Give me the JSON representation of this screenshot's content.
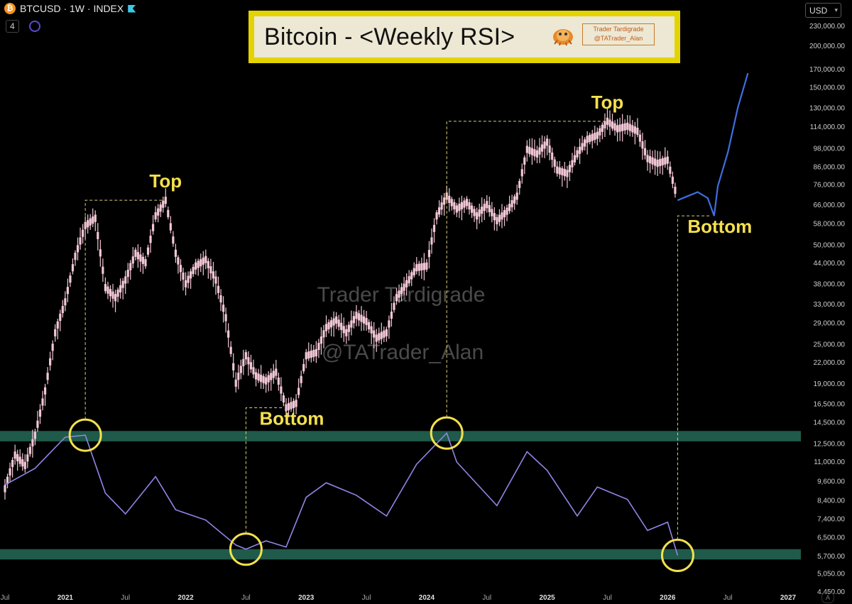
{
  "header": {
    "symbol_icon": "bitcoin-icon",
    "symbol_icon_glyph": "₿",
    "ticker_text": "BTCUSD · 1W · INDEX",
    "indicator_count": "4",
    "currency_label": "USD",
    "currency_caret": "▾",
    "auto_scale_label": "A"
  },
  "title_banner": {
    "title": "Bitcoin - <Weekly RSI>",
    "brand_line1": "Trader Tardigrade",
    "brand_line2": "@TATrader_Alan"
  },
  "watermark": {
    "line1": "Trader Tardigrade",
    "line2": "@TATrader_Alan"
  },
  "colors": {
    "background": "#000000",
    "candles": "#f2c7d6",
    "projection": "#3f6fe0",
    "rsi_line": "#8f86e6",
    "rsi_zone": "#1f5a4a",
    "annotation": "#f4e04d",
    "guide": "#d8d07a"
  },
  "chart_data": {
    "type": "line",
    "scale": "log",
    "symbol": "BTCUSD",
    "timeframe": "1W",
    "price_axis": {
      "ticks": [
        230000,
        200000,
        170000,
        150000,
        130000,
        114000,
        98000,
        86000,
        76000,
        66000,
        58000,
        50000,
        44000,
        38000,
        33000,
        29000,
        25000,
        22000,
        19000,
        16500,
        14500,
        12500,
        11000,
        9600,
        8400,
        7400,
        6500,
        5700,
        5050,
        4450
      ],
      "tick_labels": [
        "230,000.00",
        "200,000.00",
        "170,000.00",
        "150,000.00",
        "130,000.00",
        "114,000.00",
        "98,000.00",
        "86,000.00",
        "76,000.00",
        "66,000.00",
        "58,000.00",
        "50,000.00",
        "44,000.00",
        "38,000.00",
        "33,000.00",
        "29,000.00",
        "25,000.00",
        "22,000.00",
        "19,000.00",
        "16,500.00",
        "14,500.00",
        "12,500.00",
        "11,000.00",
        "9,600.00",
        "8,400.00",
        "7,400.00",
        "6,500.00",
        "5,700.00",
        "5,050.00",
        "4,450.00"
      ]
    },
    "time_axis": {
      "ticks": [
        "2020-07",
        "2021-01",
        "2021-07",
        "2022-01",
        "2022-07",
        "2023-01",
        "2023-07",
        "2024-01",
        "2024-07",
        "2025-01",
        "2025-07",
        "2026-01",
        "2026-07",
        "2027-01"
      ],
      "tick_labels": [
        "Jul",
        "2021",
        "Jul",
        "2022",
        "Jul",
        "2023",
        "Jul",
        "2024",
        "Jul",
        "2025",
        "Jul",
        "2026",
        "Jul",
        "2027"
      ]
    },
    "series": [
      {
        "name": "",
        "points": [
          [
            "2020-07",
            9100
          ],
          [
            "2020-08",
            11500
          ],
          [
            "2020-09",
            10700
          ],
          [
            "2020-10",
            13200
          ],
          [
            "2020-11",
            18000
          ],
          [
            "2020-12",
            27000
          ],
          [
            "2021-01",
            33500
          ],
          [
            "2021-02",
            46000
          ],
          [
            "2021-03",
            57000
          ],
          [
            "2021-04",
            60000
          ],
          [
            "2021-05",
            37000
          ],
          [
            "2021-06",
            34500
          ],
          [
            "2021-07",
            39000
          ],
          [
            "2021-08",
            47000
          ],
          [
            "2021-09",
            44000
          ],
          [
            "2021-10",
            61000
          ],
          [
            "2021-11",
            68000
          ],
          [
            "2021-12",
            47000
          ],
          [
            "2022-01",
            38000
          ],
          [
            "2022-02",
            43000
          ],
          [
            "2022-03",
            45000
          ],
          [
            "2022-04",
            39000
          ],
          [
            "2022-05",
            30000
          ],
          [
            "2022-06",
            19000
          ],
          [
            "2022-07",
            23000
          ],
          [
            "2022-08",
            20000
          ],
          [
            "2022-09",
            19300
          ],
          [
            "2022-10",
            20500
          ],
          [
            "2022-11",
            16000
          ],
          [
            "2022-12",
            16500
          ],
          [
            "2023-01",
            23000
          ],
          [
            "2023-02",
            23500
          ],
          [
            "2023-03",
            28000
          ],
          [
            "2023-04",
            29500
          ],
          [
            "2023-05",
            27000
          ],
          [
            "2023-06",
            30500
          ],
          [
            "2023-07",
            29200
          ],
          [
            "2023-08",
            26000
          ],
          [
            "2023-09",
            27000
          ],
          [
            "2023-10",
            34500
          ],
          [
            "2023-11",
            38000
          ],
          [
            "2023-12",
            42500
          ],
          [
            "2024-01",
            43000
          ],
          [
            "2024-02",
            61000
          ],
          [
            "2024-03",
            70000
          ],
          [
            "2024-04",
            64000
          ],
          [
            "2024-05",
            67000
          ],
          [
            "2024-06",
            61000
          ],
          [
            "2024-07",
            66000
          ],
          [
            "2024-08",
            59000
          ],
          [
            "2024-09",
            63000
          ],
          [
            "2024-10",
            70000
          ],
          [
            "2024-11",
            97000
          ],
          [
            "2024-12",
            94000
          ],
          [
            "2025-01",
            102000
          ],
          [
            "2025-02",
            84000
          ],
          [
            "2025-03",
            82000
          ],
          [
            "2025-04",
            94000
          ],
          [
            "2025-05",
            104000
          ],
          [
            "2025-06",
            107000
          ],
          [
            "2025-07",
            118000
          ],
          [
            "2025-08",
            112000
          ],
          [
            "2025-09",
            114000
          ],
          [
            "2025-10",
            110000
          ],
          [
            "2025-11",
            91000
          ],
          [
            "2025-12",
            88000
          ],
          [
            "2026-01",
            90000
          ],
          [
            "2026-02",
            68000
          ]
        ]
      },
      {
        "name": "",
        "points": [
          [
            "2026-02",
            68000
          ],
          [
            "2026-03",
            70000
          ],
          [
            "2026-04",
            72000
          ],
          [
            "2026-05",
            69000
          ],
          [
            "2026-05-20",
            61000
          ],
          [
            "2026-06",
            75000
          ],
          [
            "2026-07",
            95000
          ],
          [
            "2026-08",
            130000
          ],
          [
            "2026-09",
            165000
          ]
        ]
      }
    ],
    "rsi_panel": {
      "points": [
        [
          "2020-07",
          62
        ],
        [
          "2020-10",
          70
        ],
        [
          "2021-01",
          85
        ],
        [
          "2021-03",
          86
        ],
        [
          "2021-05",
          58
        ],
        [
          "2021-07",
          48
        ],
        [
          "2021-10",
          66
        ],
        [
          "2021-12",
          50
        ],
        [
          "2022-03",
          45
        ],
        [
          "2022-06",
          33
        ],
        [
          "2022-07",
          31
        ],
        [
          "2022-09",
          35
        ],
        [
          "2022-11",
          32
        ],
        [
          "2023-01",
          56
        ],
        [
          "2023-03",
          63
        ],
        [
          "2023-06",
          57
        ],
        [
          "2023-09",
          47
        ],
        [
          "2023-12",
          72
        ],
        [
          "2024-03",
          87
        ],
        [
          "2024-04",
          73
        ],
        [
          "2024-08",
          52
        ],
        [
          "2024-11",
          78
        ],
        [
          "2025-01",
          69
        ],
        [
          "2025-04",
          47
        ],
        [
          "2025-06",
          61
        ],
        [
          "2025-09",
          55
        ],
        [
          "2025-11",
          40
        ],
        [
          "2026-01",
          44
        ],
        [
          "2026-02",
          28
        ]
      ],
      "zones": [
        {
          "from": 83,
          "to": 88
        },
        {
          "from": 26,
          "to": 31
        }
      ]
    },
    "annotations": [
      {
        "text": "Top",
        "x": "2021-11",
        "y": 68000,
        "kind": "top"
      },
      {
        "text": "Bottom",
        "x": "2022-11",
        "y": 16000,
        "kind": "bottom"
      },
      {
        "text": "Top",
        "x": "2025-07",
        "y": 118000,
        "kind": "top"
      },
      {
        "text": "Bottom",
        "x": "2026-05-20",
        "y": 61000,
        "kind": "bottom"
      }
    ],
    "rsi_circles": [
      "2021-03",
      "2022-07",
      "2024-03",
      "2026-02"
    ]
  }
}
